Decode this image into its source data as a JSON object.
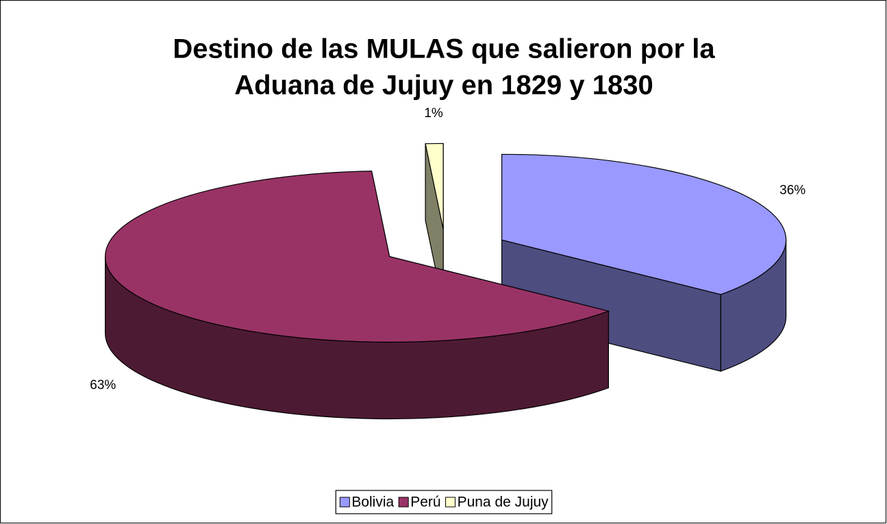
{
  "chart_data": {
    "type": "pie",
    "title": [
      "Destino de las MULAS que salieron por la",
      "Aduana de Jujuy en 1829 y 1830"
    ],
    "categories": [
      "Bolivia",
      "Perú",
      "Puna de Jujuy"
    ],
    "values": [
      36,
      63,
      1
    ],
    "value_labels": [
      "36%",
      "63%",
      "1%"
    ],
    "colors": [
      "#9999ff",
      "#993366",
      "#ffffcc"
    ],
    "side_colors": [
      "#4d4d80",
      "#4d1a33",
      "#808066"
    ],
    "legend": "bottom",
    "view": "3d",
    "exploded": true
  }
}
